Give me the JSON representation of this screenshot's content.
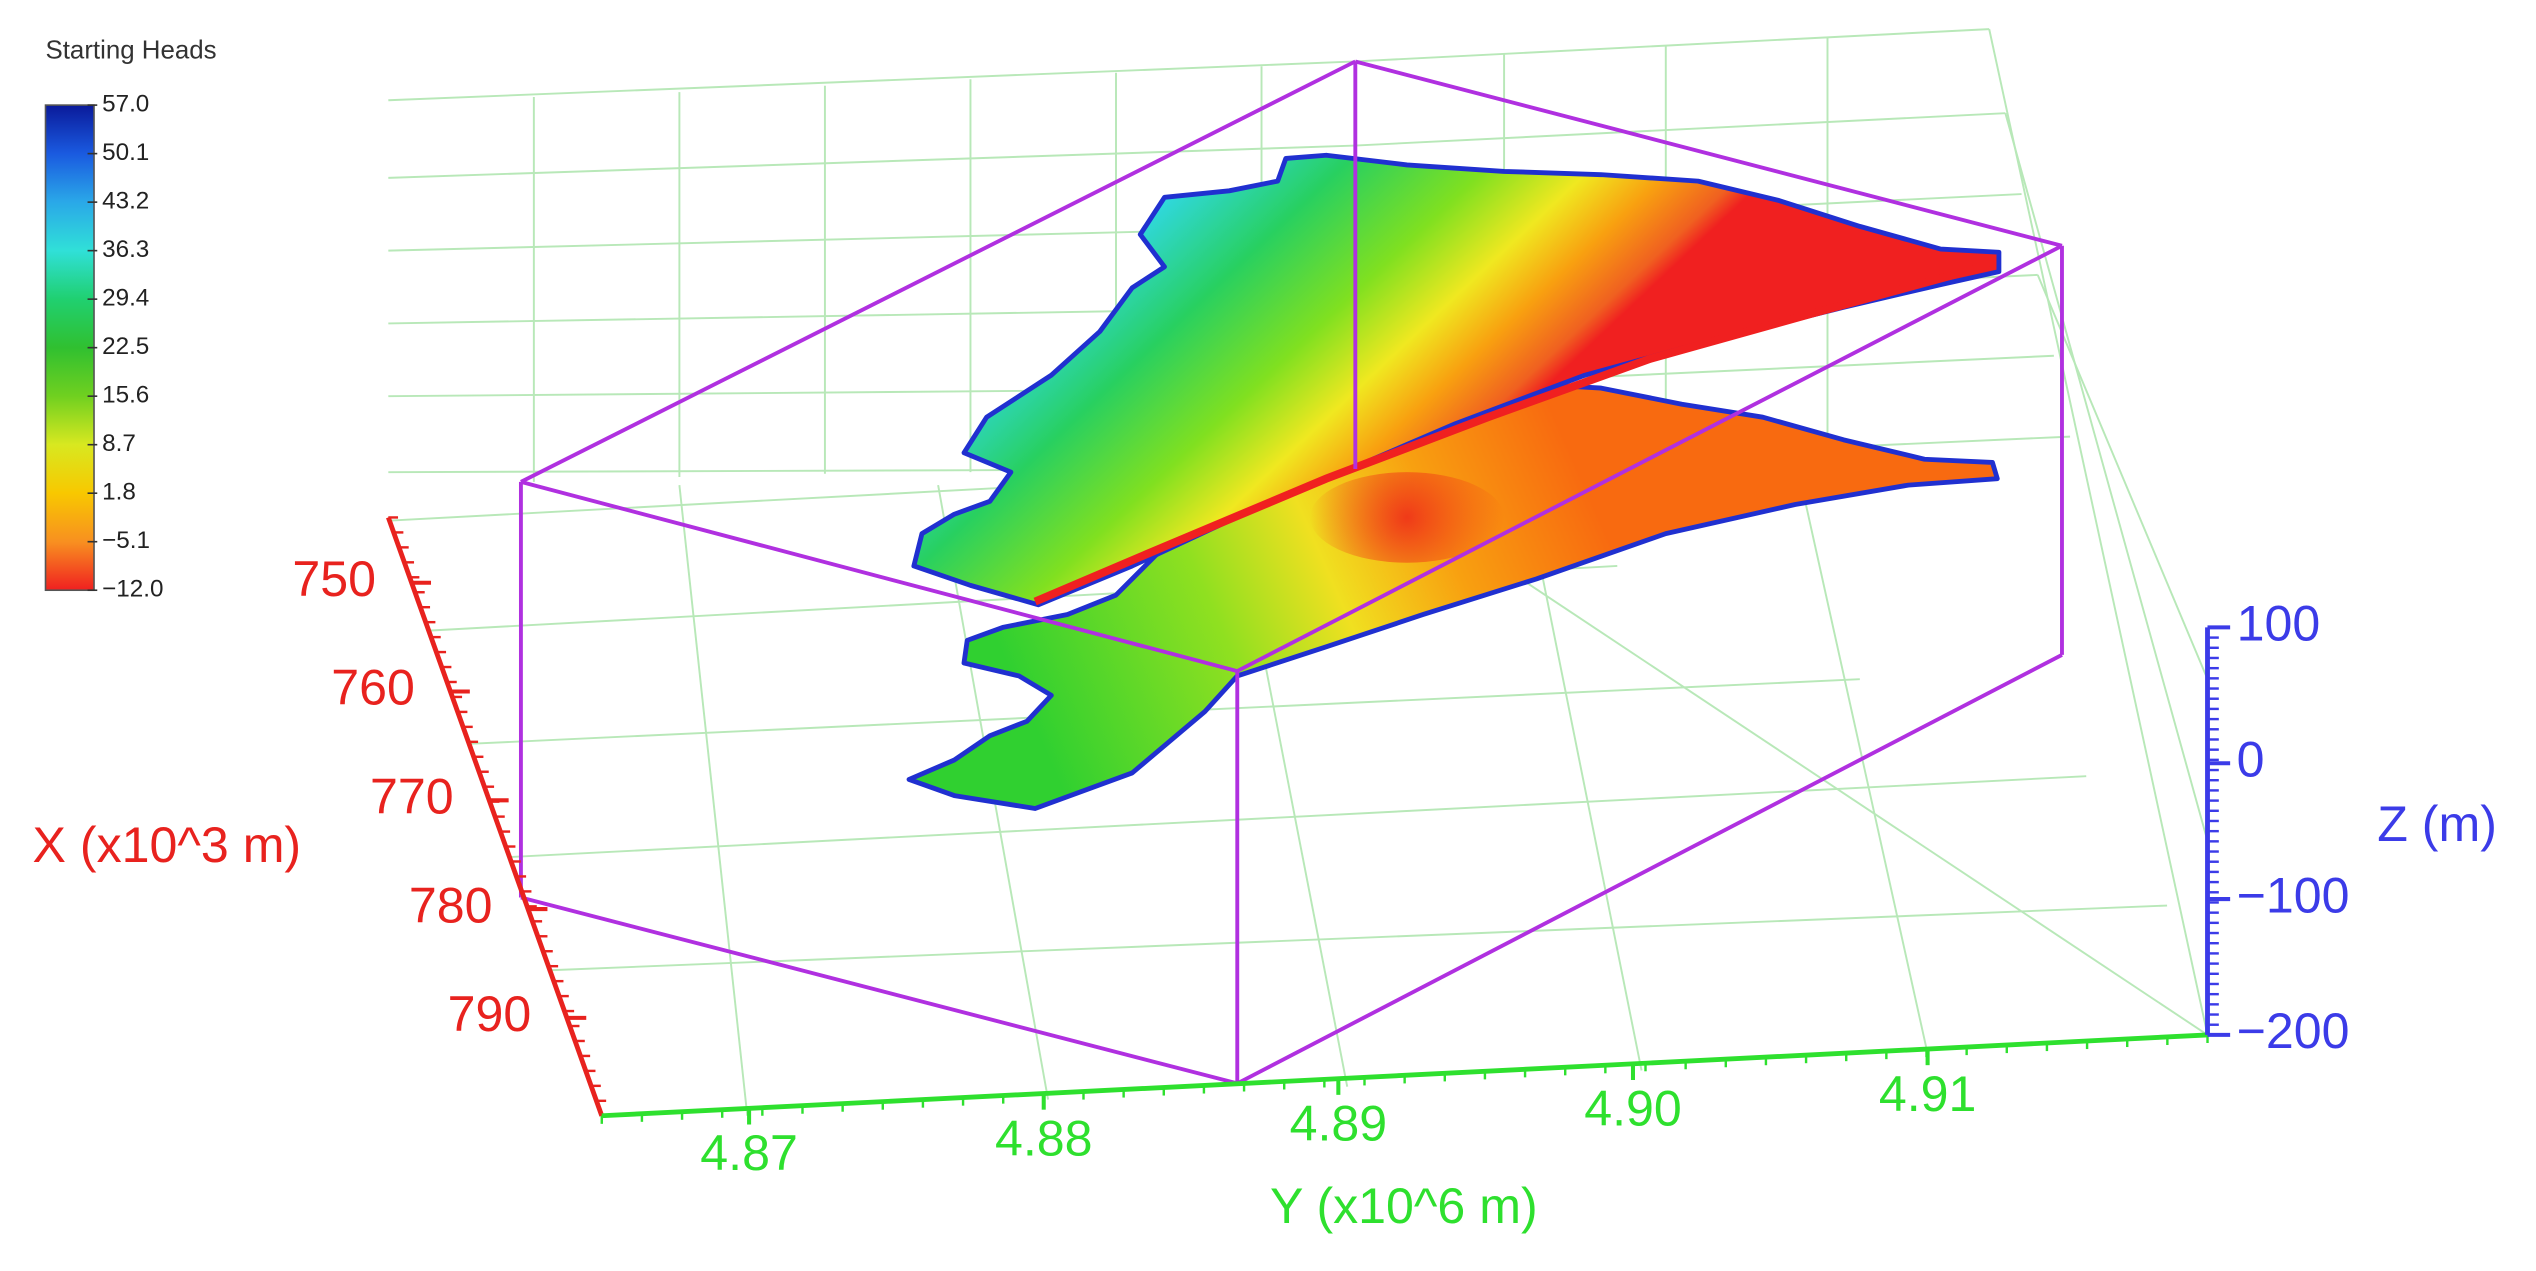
{
  "chart_data": {
    "type": "surface3d",
    "colorbar": {
      "title": "Starting Heads",
      "clim": [
        -12,
        57
      ],
      "ticks": [
        {
          "value": 57,
          "label": "57.0"
        },
        50.1,
        43.2,
        36.3,
        29.4,
        22.5,
        15.6,
        8.7,
        1.8,
        {
          "value": -5.1,
          "label": "−5.1"
        },
        {
          "value": -12,
          "label": "−12.0"
        }
      ],
      "colors": [
        "#0a1a9a",
        "#1a5ae0",
        "#2aa8e8",
        "#30e0d8",
        "#20d070",
        "#30c030",
        "#70d020",
        "#d8e820",
        "#f8c800",
        "#f89020",
        "#f02020"
      ]
    },
    "x_label": "X (x10^3 m)",
    "xlim": [
      744,
      799
    ],
    "xticks": [
      750,
      760,
      770,
      780,
      790
    ],
    "x_color": "#e8221e",
    "y_label": "Y (x10^6 m)",
    "ylim": [
      4.865,
      4.9195
    ],
    "yticks": [
      4.87,
      4.88,
      4.89,
      {
        "value": 4.9,
        "label": "4.90"
      },
      4.91
    ],
    "y_color": "#2ee02e",
    "z_label": "Z (m)",
    "zlim": [
      -200,
      100
    ],
    "zticks": [
      100,
      0,
      {
        "value": -100,
        "label": "−100"
      },
      {
        "value": -200,
        "label": "−200"
      }
    ],
    "z_color": "#3b3be8"
  }
}
